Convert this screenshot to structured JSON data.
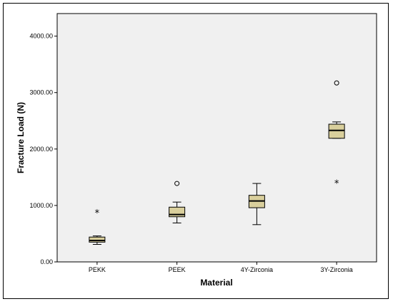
{
  "colors": {
    "plot_background": "#f0f0f0",
    "box_fill": "#d9cf9c",
    "axis": "#000000"
  },
  "chart_data": {
    "type": "box",
    "xlabel": "Material",
    "ylabel": "Fracture Load (N)",
    "ylim": [
      0,
      4400
    ],
    "y_ticks": [
      0,
      1000,
      2000,
      3000,
      4000
    ],
    "y_tick_labels": [
      "0.00",
      "1000.00",
      "2000.00",
      "3000.00",
      "4000.00"
    ],
    "grid": false,
    "categories": [
      "PEKK",
      "PEEK",
      "4Y-Zirconia",
      "3Y-Zirconia"
    ],
    "boxes": [
      {
        "category": "PEKK",
        "whisker_low": 310,
        "q1": 350,
        "median": 380,
        "q3": 440,
        "whisker_high": 460,
        "outliers": [],
        "extremes": [
          870
        ]
      },
      {
        "category": "PEEK",
        "whisker_low": 690,
        "q1": 800,
        "median": 840,
        "q3": 970,
        "whisker_high": 1060,
        "outliers": [
          1390
        ],
        "extremes": []
      },
      {
        "category": "4Y-Zirconia",
        "whisker_low": 660,
        "q1": 960,
        "median": 1080,
        "q3": 1180,
        "whisker_high": 1390,
        "outliers": [],
        "extremes": []
      },
      {
        "category": "3Y-Zirconia",
        "whisker_low": 2190,
        "q1": 2190,
        "median": 2330,
        "q3": 2440,
        "whisker_high": 2480,
        "outliers": [
          3170
        ],
        "extremes": [
          1400
        ]
      }
    ]
  }
}
